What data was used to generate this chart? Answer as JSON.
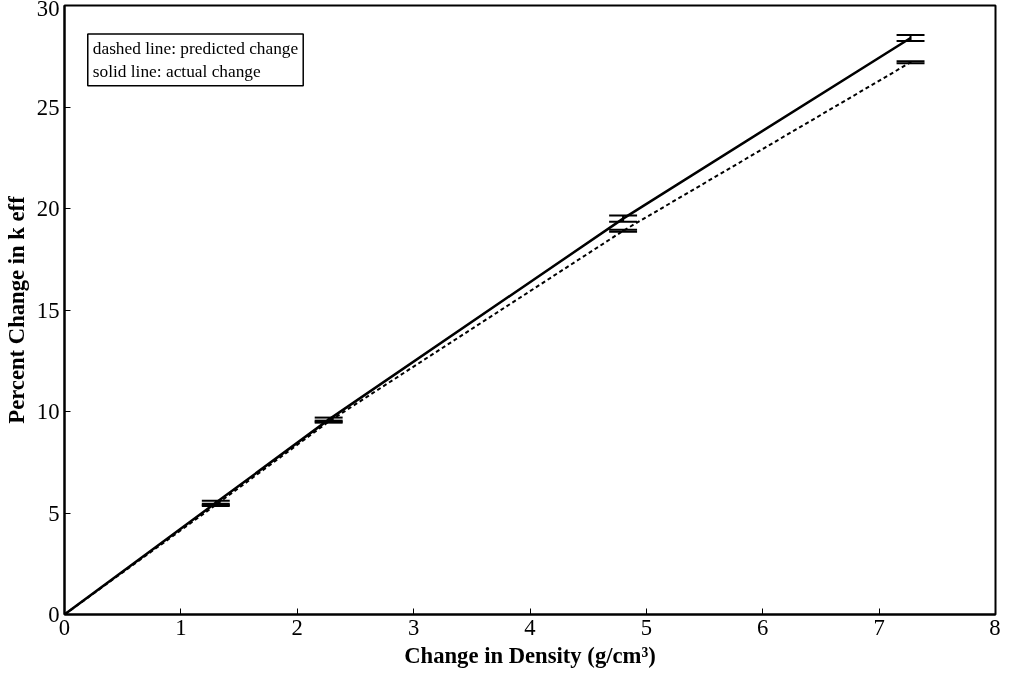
{
  "chart_data": {
    "type": "line",
    "xlabel": "Change in Density (g/cm³)",
    "ylabel": "Percent Change in k eff",
    "xlim": [
      0,
      8
    ],
    "ylim": [
      0,
      30
    ],
    "xticks": [
      0,
      1,
      2,
      3,
      4,
      5,
      6,
      7,
      8
    ],
    "yticks": [
      0,
      5,
      10,
      15,
      20,
      25,
      30
    ],
    "grid": false,
    "marker": "none",
    "annotations": [
      "dashed line: predicted change",
      "solid line: actual change"
    ],
    "series": [
      {
        "color": "#000000",
        "line_style": "solid",
        "x": [
          0,
          1.3,
          2.27,
          4.8,
          7.27
        ],
        "values": [
          0,
          5.5,
          9.6,
          19.5,
          28.4
        ],
        "errors": [
          null,
          0.1,
          0.1,
          0.15,
          0.15
        ]
      },
      {
        "color": "#000000",
        "line_style": "dashed",
        "x": [
          0,
          1.3,
          2.27,
          4.8,
          7.27
        ],
        "values": [
          0,
          5.4,
          9.5,
          18.9,
          27.2
        ],
        "errors": [
          null,
          0.05,
          0.05,
          0.05,
          0.05
        ]
      }
    ]
  }
}
